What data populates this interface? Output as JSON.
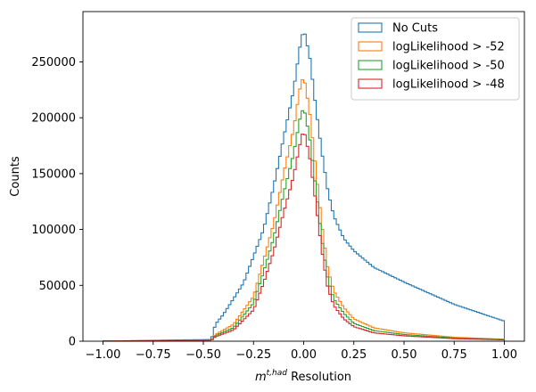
{
  "chart_data": {
    "type": "step-histogram",
    "xlabel_main": "m",
    "xlabel_sup": "t,had",
    "xlabel_rest": " Resolution",
    "ylabel": "Counts",
    "xlim": [
      -1.1,
      1.1
    ],
    "ylim": [
      0,
      295000
    ],
    "xticks": [
      -1.0,
      -0.75,
      -0.5,
      -0.25,
      0.0,
      0.25,
      0.5,
      0.75,
      1.0
    ],
    "xtick_labels": [
      "−1.00",
      "−0.75",
      "−0.50",
      "−0.25",
      "0.00",
      "0.25",
      "0.50",
      "0.75",
      "1.00"
    ],
    "yticks": [
      0,
      50000,
      100000,
      150000,
      200000,
      250000
    ],
    "ytick_labels": [
      "0",
      "50000",
      "100000",
      "150000",
      "200000",
      "250000"
    ],
    "grid": false,
    "legend_position": "top-right",
    "bins": {
      "start": -1.0,
      "end": 1.0,
      "count": 160
    },
    "series": [
      {
        "name": "No Cuts",
        "color": "#1f77b4",
        "anchors": [
          [
            -0.9,
            400
          ],
          [
            -0.6,
            1200
          ],
          [
            -0.46,
            1500
          ],
          [
            -0.44,
            15000
          ],
          [
            -0.4,
            24000
          ],
          [
            -0.3,
            52000
          ],
          [
            -0.2,
            100000
          ],
          [
            -0.15,
            138000
          ],
          [
            -0.1,
            182000
          ],
          [
            -0.05,
            225000
          ],
          [
            -0.02,
            262000
          ],
          [
            0.0,
            280000
          ],
          [
            0.03,
            255000
          ],
          [
            0.06,
            210000
          ],
          [
            0.09,
            170000
          ],
          [
            0.12,
            135000
          ],
          [
            0.15,
            112000
          ],
          [
            0.2,
            92000
          ],
          [
            0.25,
            81000
          ],
          [
            0.35,
            66000
          ],
          [
            0.5,
            53000
          ],
          [
            0.75,
            33000
          ],
          [
            0.9,
            24000
          ],
          [
            1.0,
            18000
          ]
        ]
      },
      {
        "name": "logLikelihood > -52",
        "color": "#ff7f0e",
        "anchors": [
          [
            -0.9,
            300
          ],
          [
            -0.6,
            900
          ],
          [
            -0.46,
            1100
          ],
          [
            -0.44,
            6000
          ],
          [
            -0.35,
            15000
          ],
          [
            -0.25,
            40000
          ],
          [
            -0.2,
            72000
          ],
          [
            -0.15,
            105000
          ],
          [
            -0.1,
            150000
          ],
          [
            -0.05,
            190000
          ],
          [
            -0.02,
            225000
          ],
          [
            0.0,
            238000
          ],
          [
            0.03,
            205000
          ],
          [
            0.06,
            155000
          ],
          [
            0.09,
            105000
          ],
          [
            0.12,
            65000
          ],
          [
            0.15,
            45000
          ],
          [
            0.2,
            30000
          ],
          [
            0.25,
            20000
          ],
          [
            0.35,
            12000
          ],
          [
            0.5,
            7500
          ],
          [
            0.75,
            3500
          ],
          [
            1.0,
            1800
          ]
        ]
      },
      {
        "name": "logLikelihood > -50",
        "color": "#2ca02c",
        "anchors": [
          [
            -0.9,
            250
          ],
          [
            -0.6,
            800
          ],
          [
            -0.46,
            1000
          ],
          [
            -0.44,
            5000
          ],
          [
            -0.35,
            12000
          ],
          [
            -0.25,
            34000
          ],
          [
            -0.2,
            62000
          ],
          [
            -0.15,
            92000
          ],
          [
            -0.1,
            132000
          ],
          [
            -0.05,
            168000
          ],
          [
            -0.02,
            198000
          ],
          [
            0.0,
            210000
          ],
          [
            0.03,
            182000
          ],
          [
            0.06,
            138000
          ],
          [
            0.09,
            92000
          ],
          [
            0.12,
            56000
          ],
          [
            0.15,
            38000
          ],
          [
            0.2,
            25000
          ],
          [
            0.25,
            16000
          ],
          [
            0.35,
            9500
          ],
          [
            0.5,
            6000
          ],
          [
            0.75,
            2800
          ],
          [
            1.0,
            1500
          ]
        ]
      },
      {
        "name": "logLikelihood > -48",
        "color": "#d62728",
        "anchors": [
          [
            -0.9,
            200
          ],
          [
            -0.6,
            700
          ],
          [
            -0.46,
            900
          ],
          [
            -0.44,
            4000
          ],
          [
            -0.35,
            10000
          ],
          [
            -0.25,
            28000
          ],
          [
            -0.2,
            52000
          ],
          [
            -0.15,
            80000
          ],
          [
            -0.1,
            115000
          ],
          [
            -0.05,
            148000
          ],
          [
            -0.02,
            175000
          ],
          [
            0.0,
            190000
          ],
          [
            0.03,
            165000
          ],
          [
            0.06,
            125000
          ],
          [
            0.09,
            82000
          ],
          [
            0.12,
            48000
          ],
          [
            0.15,
            32000
          ],
          [
            0.2,
            20000
          ],
          [
            0.25,
            13000
          ],
          [
            0.35,
            7500
          ],
          [
            0.5,
            4800
          ],
          [
            0.75,
            2300
          ],
          [
            1.0,
            1200
          ]
        ]
      }
    ]
  }
}
